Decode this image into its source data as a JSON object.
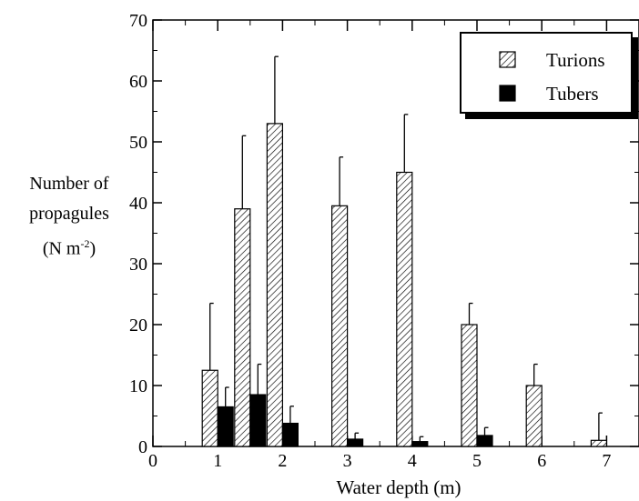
{
  "chart_data": {
    "type": "bar",
    "title": "",
    "xlabel": "Water depth (m)",
    "ylabel_lines": [
      "Number of",
      "propagules",
      "(N m",
      "-2",
      ")"
    ],
    "xlim": [
      0,
      7.5
    ],
    "ylim": [
      0,
      70
    ],
    "x_ticks": [
      "0",
      "1",
      "2",
      "3",
      "4",
      "5",
      "6",
      "7"
    ],
    "y_ticks": [
      "0",
      "10",
      "20",
      "30",
      "40",
      "50",
      "60",
      "70"
    ],
    "grid": false,
    "legend_position": "top-right",
    "series": [
      {
        "name": "Turions",
        "pattern": "diagonal-hatch",
        "x": [
          1,
          1.5,
          2,
          3,
          4,
          5,
          6,
          7
        ],
        "values": [
          12.5,
          39,
          53,
          39.5,
          45,
          20,
          10,
          1
        ],
        "error": [
          11,
          12,
          11,
          8,
          9.5,
          3.5,
          3.5,
          4.5
        ]
      },
      {
        "name": "Tubers",
        "pattern": "solid-black",
        "x": [
          1,
          1.5,
          2,
          3,
          4,
          5
        ],
        "values": [
          6.5,
          8.5,
          3.8,
          1.2,
          0.8,
          1.8
        ],
        "error": [
          3.2,
          5,
          2.8,
          1,
          0.8,
          1.3
        ]
      }
    ]
  }
}
